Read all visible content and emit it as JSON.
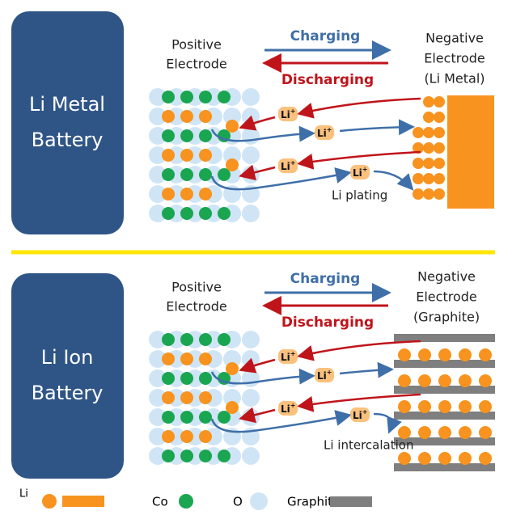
{
  "panels": [
    {
      "battery_label": [
        "Li Metal",
        "Battery"
      ],
      "positive_label": [
        "Positive",
        "Electrode"
      ],
      "charging": "Charging",
      "discharging": "Discharging",
      "negative_label": [
        "Negative",
        "Electrode",
        "(Li Metal)"
      ],
      "ion": "Li",
      "ion_charge": "+",
      "process": "Li plating"
    },
    {
      "battery_label": [
        "Li Ion",
        "Battery"
      ],
      "positive_label": [
        "Positive",
        "Electrode"
      ],
      "charging": "Charging",
      "discharging": "Discharging",
      "negative_label": [
        "Negative",
        "Electrode",
        "(Graphite)"
      ],
      "ion": "Li",
      "ion_charge": "+",
      "process": "Li intercalation"
    }
  ],
  "legend": [
    {
      "label": "Li"
    },
    {
      "label": "Co"
    },
    {
      "label": "O"
    },
    {
      "label": "Graphite"
    }
  ]
}
